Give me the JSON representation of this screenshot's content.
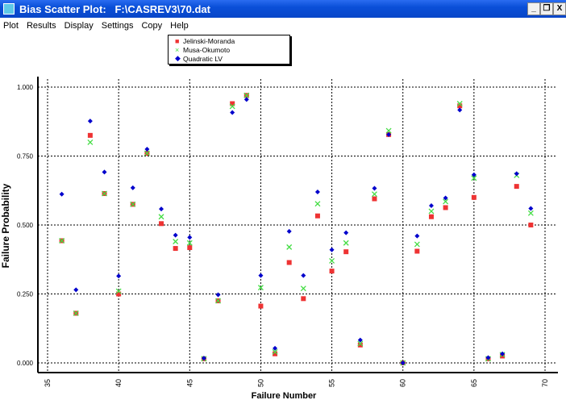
{
  "window": {
    "title": "Bias Scatter Plot:   F:\\CASREV3\\70.dat",
    "minimize": "_",
    "restore": "❐",
    "close": "X"
  },
  "menu": [
    "Plot",
    "Results",
    "Display",
    "Settings",
    "Copy",
    "Help"
  ],
  "chart_data": {
    "type": "scatter",
    "xlabel": "Failure Number",
    "ylabel": "Failure Probability",
    "xlim": [
      35,
      70
    ],
    "ylim": [
      0,
      1
    ],
    "xticks": [
      "35",
      "40",
      "45",
      "50",
      "55",
      "60",
      "65",
      "70"
    ],
    "yticks": [
      "0.000",
      "0.250",
      "0.500",
      "0.750",
      "1.000"
    ],
    "grid": true,
    "legend_position": "top-center",
    "x": [
      36,
      37,
      38,
      39,
      40,
      41,
      42,
      43,
      44,
      45,
      46,
      47,
      48,
      49,
      50,
      51,
      52,
      53,
      54,
      55,
      56,
      57,
      58,
      59,
      60,
      61,
      62,
      63,
      64,
      65,
      66,
      67,
      68,
      69
    ],
    "series": [
      {
        "name": "Jelinski-Moranda",
        "color": "#ee3333",
        "marker": "square",
        "values": [
          0.443,
          0.18,
          0.825,
          0.614,
          0.25,
          0.575,
          0.76,
          0.505,
          0.415,
          0.418,
          0.015,
          0.225,
          0.94,
          0.97,
          0.206,
          0.033,
          0.364,
          0.233,
          0.533,
          0.333,
          0.403,
          0.065,
          0.595,
          0.828,
          0.0,
          0.405,
          0.53,
          0.563,
          0.932,
          0.6,
          0.015,
          0.025,
          0.64,
          0.5
        ]
      },
      {
        "name": "Musa-Okumoto",
        "color": "#44dd44",
        "marker": "x",
        "values": [
          0.443,
          0.18,
          0.8,
          0.614,
          0.26,
          0.575,
          0.76,
          0.53,
          0.44,
          0.435,
          0.015,
          0.225,
          0.93,
          0.97,
          0.273,
          0.04,
          0.42,
          0.27,
          0.577,
          0.37,
          0.435,
          0.07,
          0.612,
          0.842,
          0.0,
          0.43,
          0.55,
          0.585,
          0.94,
          0.67,
          0.015,
          0.03,
          0.68,
          0.543
        ]
      },
      {
        "name": "Quadratic LV",
        "color": "#0000cc",
        "marker": "diamond",
        "values": [
          0.612,
          0.265,
          0.877,
          0.692,
          0.315,
          0.635,
          0.775,
          0.558,
          0.463,
          0.455,
          0.017,
          0.247,
          0.908,
          0.955,
          0.317,
          0.053,
          0.477,
          0.317,
          0.62,
          0.41,
          0.472,
          0.083,
          0.633,
          0.828,
          0.0,
          0.46,
          0.57,
          0.598,
          0.917,
          0.682,
          0.019,
          0.033,
          0.686,
          0.56
        ]
      }
    ]
  }
}
